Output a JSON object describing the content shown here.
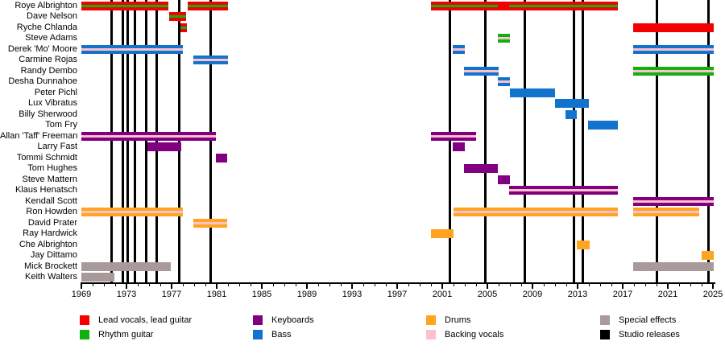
{
  "chart_data": {
    "type": "timeline",
    "x_axis": {
      "min": 1969,
      "max": 2025,
      "major_tick_step": 4,
      "minor_tick_step": 1,
      "tick_labels": [
        "1969",
        "1973",
        "1977",
        "1981",
        "1985",
        "1989",
        "1993",
        "1997",
        "2001",
        "2005",
        "2009",
        "2013",
        "2017",
        "2021",
        "2025"
      ]
    },
    "palette": {
      "red": "#f40000",
      "green": "#0fb00f",
      "blue": "#1273cf",
      "purple": "#800080",
      "orange": "#ffa41e",
      "pink": "#ffc0cb",
      "mauve": "#a89a9a",
      "black": "#000000"
    },
    "legend": [
      {
        "label": "Lead vocals, lead guitar",
        "color": "red"
      },
      {
        "label": "Rhythm guitar",
        "color": "green"
      },
      {
        "label": "Keyboards",
        "color": "purple"
      },
      {
        "label": "Bass",
        "color": "blue"
      },
      {
        "label": "Drums",
        "color": "orange"
      },
      {
        "label": "Backing vocals",
        "color": "pink"
      },
      {
        "label": "Special effects",
        "color": "mauve"
      },
      {
        "label": "Studio releases",
        "color": "black"
      }
    ],
    "studio_release_years": [
      1971.64,
      1972.64,
      1973.07,
      1973.71,
      1974.71,
      1975.64,
      1977.64,
      1980.43,
      2001.64,
      2004.79,
      2008.29,
      2012.64,
      2013.43,
      2020.0,
      2024.57
    ],
    "members": [
      {
        "name": "Roye Albrighton",
        "bars": [
          {
            "start": 1969.0,
            "end": 1976.7,
            "color": "red",
            "stripe": "green"
          },
          {
            "start": 1978.4,
            "end": 1982.0,
            "color": "red",
            "stripe": "green"
          },
          {
            "start": 2000.0,
            "end": 2005.95,
            "color": "red",
            "stripe": "green"
          },
          {
            "start": 2005.95,
            "end": 2006.95,
            "color": "red",
            "stripe": null
          },
          {
            "start": 2006.95,
            "end": 2016.55,
            "color": "red",
            "stripe": "green"
          }
        ]
      },
      {
        "name": "Dave Nelson",
        "bars": [
          {
            "start": 1976.75,
            "end": 1978.3,
            "color": "red",
            "stripe": "green"
          }
        ]
      },
      {
        "name": "Ryche Chlanda",
        "bars": [
          {
            "start": 1977.8,
            "end": 1978.35,
            "color": "red",
            "stripe": "green"
          },
          {
            "start": 2017.9,
            "end": 2025.1,
            "color": "red",
            "stripe": null
          }
        ]
      },
      {
        "name": "Steve Adams",
        "bars": [
          {
            "start": 2005.95,
            "end": 2007.0,
            "color": "green",
            "stripe": "pink"
          }
        ]
      },
      {
        "name": "Derek 'Mo' Moore",
        "bars": [
          {
            "start": 1969.0,
            "end": 1978.0,
            "color": "blue",
            "stripe": "pink"
          },
          {
            "start": 2001.9,
            "end": 2003.0,
            "color": "blue",
            "stripe": "pink"
          },
          {
            "start": 2017.9,
            "end": 2025.1,
            "color": "blue",
            "stripe": "pink"
          }
        ]
      },
      {
        "name": "Carmine Rojas",
        "bars": [
          {
            "start": 1978.93,
            "end": 1982.0,
            "color": "blue",
            "stripe": "pink"
          }
        ]
      },
      {
        "name": "Randy Dembo",
        "bars": [
          {
            "start": 2002.9,
            "end": 2006.0,
            "color": "blue",
            "stripe": "pink"
          },
          {
            "start": 2017.9,
            "end": 2025.1,
            "color": "green",
            "stripe": "pink"
          }
        ]
      },
      {
        "name": "Desha Dunnahoe",
        "bars": [
          {
            "start": 2005.95,
            "end": 2007.0,
            "color": "blue",
            "stripe": "pink"
          }
        ]
      },
      {
        "name": "Peter Pichl",
        "bars": [
          {
            "start": 2007.0,
            "end": 2011.0,
            "color": "blue",
            "stripe": null
          }
        ]
      },
      {
        "name": "Lux Vibratus",
        "bars": [
          {
            "start": 2011.0,
            "end": 2014.0,
            "color": "blue",
            "stripe": null
          }
        ]
      },
      {
        "name": "Billy Sherwood",
        "bars": [
          {
            "start": 2011.9,
            "end": 2012.9,
            "color": "blue",
            "stripe": null
          }
        ]
      },
      {
        "name": "Tom Fry",
        "bars": [
          {
            "start": 2013.95,
            "end": 2016.55,
            "color": "blue",
            "stripe": null
          }
        ]
      },
      {
        "name": "Allan 'Taff' Freeman",
        "bars": [
          {
            "start": 1969.0,
            "end": 1980.95,
            "color": "purple",
            "stripe": "pink"
          },
          {
            "start": 2000.0,
            "end": 2004.0,
            "color": "purple",
            "stripe": "pink"
          }
        ]
      },
      {
        "name": "Larry Fast",
        "bars": [
          {
            "start": 1974.86,
            "end": 1977.86,
            "color": "purple",
            "stripe": null
          },
          {
            "start": 2001.9,
            "end": 2003.0,
            "color": "purple",
            "stripe": null
          }
        ]
      },
      {
        "name": "Tommi Schmidt",
        "bars": [
          {
            "start": 1980.9,
            "end": 1981.95,
            "color": "purple",
            "stripe": null
          }
        ]
      },
      {
        "name": "Tom Hughes",
        "bars": [
          {
            "start": 2002.9,
            "end": 2005.95,
            "color": "purple",
            "stripe": null
          }
        ]
      },
      {
        "name": "Steve Mattern",
        "bars": [
          {
            "start": 2005.9,
            "end": 2007.0,
            "color": "purple",
            "stripe": null
          }
        ]
      },
      {
        "name": "Klaus Henatsch",
        "bars": [
          {
            "start": 2006.95,
            "end": 2016.55,
            "color": "purple",
            "stripe": "pink"
          }
        ]
      },
      {
        "name": "Kendall Scott",
        "bars": [
          {
            "start": 2017.9,
            "end": 2025.1,
            "color": "purple",
            "stripe": "pink"
          }
        ]
      },
      {
        "name": "Ron Howden",
        "bars": [
          {
            "start": 1969.0,
            "end": 1978.0,
            "color": "orange",
            "stripe": "pink"
          },
          {
            "start": 2002.0,
            "end": 2016.55,
            "color": "orange",
            "stripe": "pink"
          },
          {
            "start": 2017.9,
            "end": 2023.8,
            "color": "orange",
            "stripe": "pink"
          }
        ]
      },
      {
        "name": "David Prater",
        "bars": [
          {
            "start": 1978.93,
            "end": 1981.93,
            "color": "orange",
            "stripe": "pink"
          }
        ]
      },
      {
        "name": "Ray Hardwick",
        "bars": [
          {
            "start": 2000.0,
            "end": 2002.0,
            "color": "orange",
            "stripe": null
          }
        ]
      },
      {
        "name": "Che Albrighton",
        "bars": [
          {
            "start": 2012.9,
            "end": 2014.05,
            "color": "orange",
            "stripe": null
          }
        ]
      },
      {
        "name": "Jay Dittamo",
        "bars": [
          {
            "start": 2024.0,
            "end": 2025.1,
            "color": "orange",
            "stripe": null
          }
        ]
      },
      {
        "name": "Mick Brockett",
        "bars": [
          {
            "start": 1969.0,
            "end": 1976.9,
            "color": "mauve",
            "stripe": null
          },
          {
            "start": 2017.9,
            "end": 2025.1,
            "color": "mauve",
            "stripe": null
          }
        ]
      },
      {
        "name": "Keith Walters",
        "bars": [
          {
            "start": 1969.0,
            "end": 1971.9,
            "color": "mauve",
            "stripe": null
          }
        ]
      }
    ]
  }
}
